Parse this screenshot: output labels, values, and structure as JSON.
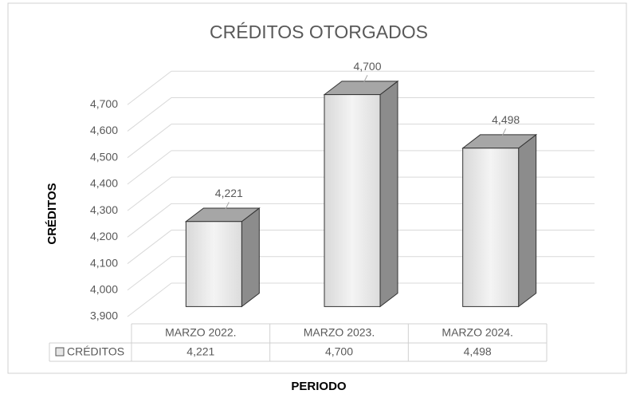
{
  "chart_data": {
    "type": "bar3d",
    "title": "CRÉDITOS OTORGADOS",
    "y_label": "CRÉDITOS",
    "x_label": "PERIODO",
    "categories": [
      "MARZO 2022.",
      "MARZO 2023.",
      "MARZO 2024."
    ],
    "series": [
      {
        "name": "CRÉDITOS",
        "color": "#e6e6e6",
        "values": [
          4221,
          4700,
          4498
        ],
        "value_labels": [
          "4,221",
          "4,700",
          "4,498"
        ]
      }
    ],
    "ylim": [
      3900,
      4800
    ],
    "yticks": [
      {
        "value": 3900,
        "label": "3,900"
      },
      {
        "value": 4000,
        "label": "4,000"
      },
      {
        "value": 4100,
        "label": "4,100"
      },
      {
        "value": 4200,
        "label": "4,200"
      },
      {
        "value": 4300,
        "label": "4,300"
      },
      {
        "value": 4400,
        "label": "4,400"
      },
      {
        "value": 4500,
        "label": "4,500"
      },
      {
        "value": 4600,
        "label": "4,600"
      },
      {
        "value": 4700,
        "label": "4,700"
      }
    ],
    "grid": true,
    "data_table": true
  }
}
